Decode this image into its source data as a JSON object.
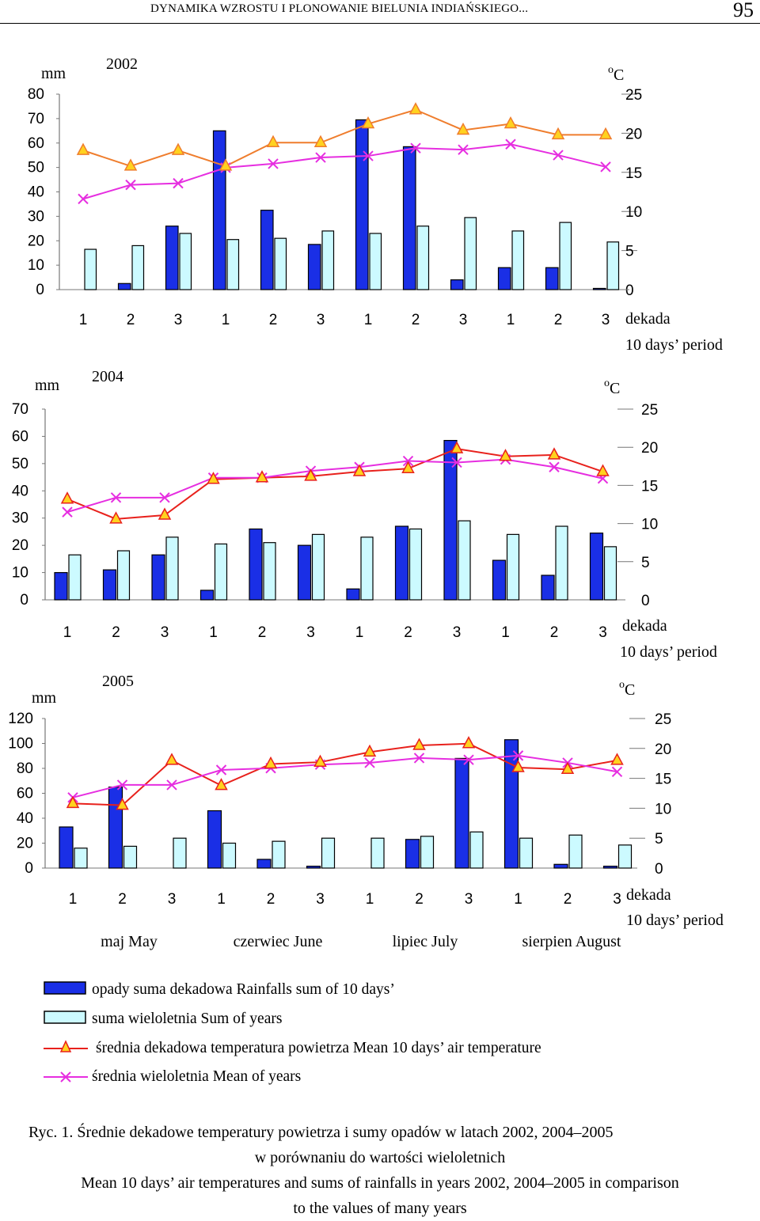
{
  "header": {
    "title": "DYNAMIKA WZROSTU I PLONOWANIE BIELUNIA INDIAŃSKIEGO...",
    "page": "95"
  },
  "colors": {
    "rain": "#1a2fe6",
    "longterm_rain": "#ccfaff",
    "temp_2002": "#ef7d2d",
    "temp": "#e8211c",
    "longterm_temp": "#e62ee0",
    "marker_fill": "#ffd21f"
  },
  "labels": {
    "mm": "mm",
    "degc_sup": "o",
    "degc": "C",
    "dekada": "dekada",
    "period": "10 days’ period",
    "dekada_ticks": [
      "1",
      "2",
      "3",
      "1",
      "2",
      "3",
      "1",
      "2",
      "3",
      "1",
      "2",
      "3"
    ],
    "months": [
      "maj May",
      "czerwiec June",
      "lipiec July",
      "sierpien August"
    ]
  },
  "chart_data": [
    {
      "type": "bar+line",
      "title": "2002",
      "categories": [
        "1",
        "2",
        "3",
        "1",
        "2",
        "3",
        "1",
        "2",
        "3",
        "1",
        "2",
        "3"
      ],
      "y_left": {
        "label": "mm",
        "ylim": [
          0,
          80
        ],
        "ticks": [
          "80",
          "70",
          "60",
          "50",
          "40",
          "30",
          "20",
          "10",
          "0"
        ]
      },
      "y_right": {
        "label": "oC",
        "ylim": [
          0,
          25
        ],
        "ticks": [
          "25",
          "20",
          "15",
          "10",
          "5",
          "0"
        ]
      },
      "series": [
        {
          "name": "opady suma dekadowa Rainfalls sum of 10 days",
          "type": "bar",
          "axis": "left",
          "values": [
            0,
            2.5,
            26,
            65,
            32.5,
            18.5,
            69.5,
            58.5,
            4,
            9,
            9,
            0.5
          ]
        },
        {
          "name": "suma wieloletnia Sum of years",
          "type": "bar",
          "axis": "left",
          "values": [
            16.5,
            18,
            23,
            20.5,
            21,
            24,
            23,
            26,
            29.5,
            24,
            27.5,
            19.5
          ]
        },
        {
          "name": "średnia dekadowa temperatura powietrza Mean 10 days’ air temperature",
          "type": "line",
          "axis": "right",
          "values": [
            17.8,
            15.8,
            17.8,
            15.8,
            18.8,
            18.8,
            21.2,
            23,
            20.4,
            21.2,
            19.8,
            19.8
          ]
        },
        {
          "name": "średnia wieloletnia Mean of years",
          "type": "line",
          "axis": "right",
          "values": [
            11.6,
            13.4,
            13.6,
            15.6,
            16.1,
            16.9,
            17.1,
            18.1,
            17.9,
            18.6,
            17.2,
            15.7
          ]
        }
      ]
    },
    {
      "type": "bar+line",
      "title": "2004",
      "categories": [
        "1",
        "2",
        "3",
        "1",
        "2",
        "3",
        "1",
        "2",
        "3",
        "1",
        "2",
        "3"
      ],
      "y_left": {
        "label": "mm",
        "ylim": [
          0,
          70
        ],
        "ticks": [
          "70",
          "60",
          "50",
          "40",
          "30",
          "20",
          "10",
          "0"
        ]
      },
      "y_right": {
        "label": "oC",
        "ylim": [
          0,
          25
        ],
        "ticks": [
          "25",
          "20",
          "15",
          "10",
          "5",
          "0"
        ]
      },
      "series": [
        {
          "name": "opady suma dekadowa Rainfalls sum of 10 days",
          "type": "bar",
          "axis": "left",
          "values": [
            10,
            11,
            16.5,
            3.5,
            26,
            20,
            4,
            27,
            58.5,
            14.5,
            9,
            24.5
          ]
        },
        {
          "name": "suma wieloletnia Sum of years",
          "type": "bar",
          "axis": "left",
          "values": [
            16.5,
            18,
            23,
            20.5,
            21,
            24,
            23,
            26,
            29,
            24,
            27,
            19.5
          ]
        },
        {
          "name": "średnia dekadowa temperatura powietrza Mean 10 days’ air temperature",
          "type": "line",
          "axis": "right",
          "values": [
            13.2,
            10.6,
            11.1,
            15.8,
            16,
            16.2,
            16.8,
            17.2,
            19.8,
            18.8,
            19,
            16.8
          ]
        },
        {
          "name": "średnia wieloletnia Mean of years",
          "type": "line",
          "axis": "right",
          "values": [
            11.5,
            13.4,
            13.4,
            16,
            16,
            16.9,
            17.4,
            18.2,
            18,
            18.4,
            17.4,
            15.9
          ]
        }
      ]
    },
    {
      "type": "bar+line",
      "title": "2005",
      "categories": [
        "1",
        "2",
        "3",
        "1",
        "2",
        "3",
        "1",
        "2",
        "3",
        "1",
        "2",
        "3"
      ],
      "y_left": {
        "label": "mm",
        "ylim": [
          0,
          120
        ],
        "ticks": [
          "120",
          "100",
          "80",
          "60",
          "40",
          "20",
          "0"
        ]
      },
      "y_right": {
        "label": "oC",
        "ylim": [
          0,
          25
        ],
        "ticks": [
          "25",
          "20",
          "15",
          "10",
          "5",
          "0"
        ]
      },
      "series": [
        {
          "name": "opady suma dekadowa Rainfalls sum of 10 days",
          "type": "bar",
          "axis": "left",
          "values": [
            33,
            65,
            0,
            46,
            7,
            1.5,
            0,
            23,
            88,
            103,
            3,
            1.5
          ]
        },
        {
          "name": "suma wieloletnia Sum of years",
          "type": "bar",
          "axis": "left",
          "values": [
            16,
            17.5,
            24,
            20,
            21.5,
            24,
            24,
            25.5,
            29,
            24,
            26.5,
            18.5
          ]
        },
        {
          "name": "średnia dekadowa temperatura powietrza Mean 10 days’ air temperature",
          "type": "line",
          "axis": "right",
          "values": [
            10.8,
            10.5,
            18,
            13.8,
            17.4,
            17.7,
            19.4,
            20.5,
            20.8,
            16.8,
            16.5,
            18
          ]
        },
        {
          "name": "średnia wieloletnia Mean of years",
          "type": "line",
          "axis": "right",
          "values": [
            11.8,
            13.9,
            13.9,
            16.4,
            16.7,
            17.3,
            17.6,
            18.4,
            18.1,
            18.8,
            17.6,
            16.1
          ]
        }
      ]
    }
  ],
  "legend": [
    "opady suma dekadowa Rainfalls sum of 10 days’",
    "suma wieloletnia Sum of years",
    "średnia dekadowa temperatura powietrza Mean 10 days’ air temperature",
    "średnia wieloletnia Mean of years"
  ],
  "caption": {
    "line1": "Ryc. 1. Średnie dekadowe temperatury powietrza i sumy opadów w latach 2002, 2004–2005",
    "line2": "w porównaniu do wartości wieloletnich",
    "line3": "Mean 10 days’ air temperatures and sums of rainfalls in years 2002, 2004–2005 in comparison",
    "line4": "to the values of many years"
  }
}
